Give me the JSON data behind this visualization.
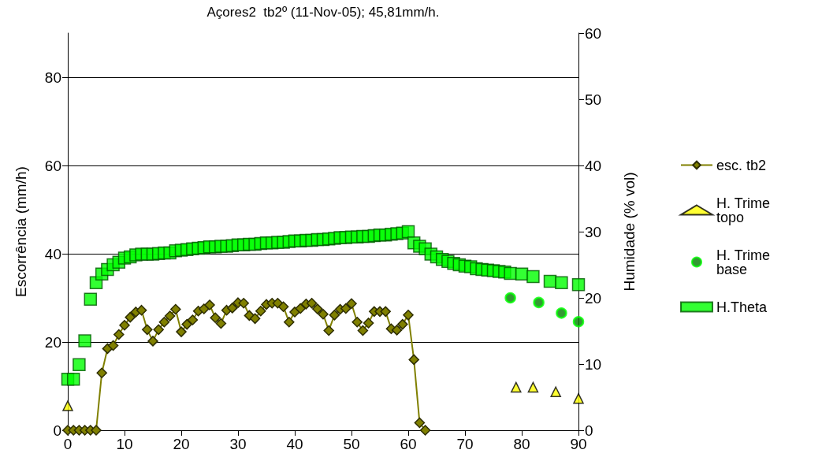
{
  "chart_data": {
    "type": "scatter",
    "title": "Açores2  tb2º (11-Nov-05); 45,81mm/h.",
    "ylabel": "Escorrência (mm/h)",
    "y2label": "Humidade (% vol)",
    "xlim": [
      0,
      90
    ],
    "xticks": [
      0,
      10,
      20,
      30,
      40,
      50,
      60,
      70,
      80,
      90
    ],
    "ylim": [
      0,
      90
    ],
    "yticks": [
      0,
      20,
      40,
      60,
      80
    ],
    "y2lim": [
      0,
      60
    ],
    "y2ticks": [
      0,
      10,
      20,
      30,
      40,
      50,
      60
    ],
    "grid": "y",
    "legend": "right",
    "series": [
      {
        "name": "esc. tb2",
        "type": "line",
        "marker": "diamond",
        "line_style": "solid",
        "color": "#808000",
        "x": [
          0,
          1,
          2,
          3,
          4,
          5,
          6,
          7,
          8,
          9,
          10,
          11,
          12,
          13,
          14,
          15,
          16,
          17,
          18,
          19,
          20,
          21,
          22,
          23,
          24,
          25,
          26,
          27,
          28,
          29,
          30,
          31,
          32,
          33,
          34,
          35,
          36,
          37,
          38,
          39,
          40,
          41,
          42,
          43,
          44,
          45,
          46,
          47,
          48,
          49,
          50,
          51,
          52,
          53,
          54,
          55,
          56,
          57,
          58,
          59,
          60,
          61,
          62,
          63
        ],
        "values": [
          0,
          0,
          0,
          0,
          0,
          0,
          13,
          18.5,
          19.2,
          21.7,
          23.8,
          25.6,
          26.8,
          27.2,
          22.8,
          20.2,
          22.8,
          24.5,
          25.9,
          27.4,
          22.3,
          24,
          25,
          27,
          27.5,
          28.4,
          25.5,
          24.2,
          27.2,
          27.7,
          28.9,
          28.8,
          26,
          25.3,
          27,
          28.5,
          28.8,
          28.8,
          28,
          24.5,
          26.8,
          27.6,
          28.6,
          28.8,
          27.5,
          26.3,
          22.6,
          26.1,
          27.4,
          27.6,
          28.7,
          24.5,
          22.6,
          24.3,
          26.9,
          26.9,
          26.9,
          23,
          22.7,
          24,
          26.1,
          16,
          1.7,
          0
        ]
      },
      {
        "name": "H. Trime topo",
        "marker": "triangle",
        "color": "#ffff00",
        "axis": "y2",
        "x": [
          0,
          79,
          82,
          86,
          90
        ],
        "values": [
          3.7,
          6.5,
          6.5,
          5.8,
          4.8
        ]
      },
      {
        "name": "H. Trime base",
        "marker": "circle",
        "color": "#008000",
        "axis": "y2",
        "x": [
          78,
          83,
          87,
          90
        ],
        "values": [
          20,
          19.3,
          17.7,
          16.4
        ]
      },
      {
        "name": "H.Theta",
        "marker": "square",
        "color": "#00ff00",
        "axis": "y2",
        "x": [
          0,
          1,
          2,
          3,
          4,
          5,
          6,
          7,
          8,
          9,
          10,
          11,
          12,
          13,
          14,
          15,
          16,
          17,
          18,
          19,
          20,
          21,
          22,
          23,
          24,
          25,
          26,
          27,
          28,
          29,
          30,
          31,
          32,
          33,
          34,
          35,
          36,
          37,
          38,
          39,
          40,
          41,
          42,
          43,
          44,
          45,
          46,
          47,
          48,
          49,
          50,
          51,
          52,
          53,
          54,
          55,
          56,
          57,
          58,
          59,
          60,
          61,
          62,
          63,
          64,
          65,
          66,
          67,
          68,
          69,
          70,
          71,
          72,
          73,
          74,
          75,
          76,
          77,
          78,
          80,
          82,
          85,
          87,
          90
        ],
        "values": [
          7.7,
          7.7,
          9.9,
          13.5,
          19.8,
          22.3,
          23.6,
          24.3,
          25,
          25.4,
          26,
          26.2,
          26.5,
          26.6,
          26.6,
          26.6,
          26.7,
          26.8,
          26.8,
          27.1,
          27.2,
          27.3,
          27.4,
          27.5,
          27.6,
          27.7,
          27.7,
          27.8,
          27.8,
          27.9,
          28,
          28,
          28.1,
          28.1,
          28.2,
          28.3,
          28.3,
          28.4,
          28.4,
          28.5,
          28.6,
          28.6,
          28.7,
          28.7,
          28.8,
          28.8,
          28.9,
          29,
          29.1,
          29.1,
          29.2,
          29.2,
          29.3,
          29.3,
          29.4,
          29.5,
          29.5,
          29.6,
          29.7,
          29.8,
          30,
          28.3,
          27.8,
          27.4,
          26.6,
          26.2,
          25.8,
          25.5,
          25.2,
          25,
          24.8,
          24.7,
          24.4,
          24.3,
          24.2,
          24.1,
          24,
          23.9,
          23.7,
          23.6,
          23.2,
          22.5,
          22.3,
          22
        ]
      }
    ]
  }
}
